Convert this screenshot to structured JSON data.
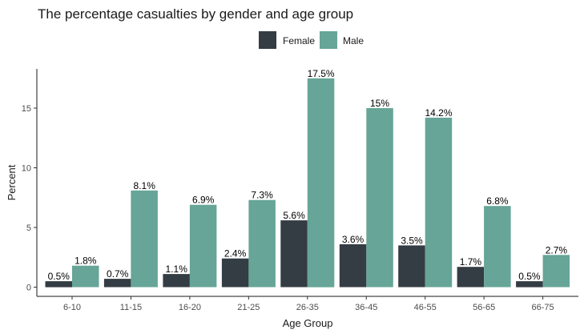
{
  "chart_data": {
    "type": "bar",
    "title": "The percentage casualties by gender and age group",
    "xlabel": "Age Group",
    "ylabel": "Percent",
    "ylim": [
      0,
      18
    ],
    "yticks": [
      0,
      5,
      10,
      15
    ],
    "grid": false,
    "legend_position": "top",
    "categories": [
      "6-10",
      "11-15",
      "16-20",
      "21-25",
      "26-35",
      "36-45",
      "46-55",
      "56-65",
      "66-75"
    ],
    "series": [
      {
        "name": "Female",
        "color": "#343c44",
        "values": [
          0.5,
          0.7,
          1.1,
          2.4,
          5.6,
          3.6,
          3.5,
          1.7,
          0.5
        ],
        "labels": [
          "0.5%",
          "0.7%",
          "1.1%",
          "2.4%",
          "5.6%",
          "3.6%",
          "3.5%",
          "1.7%",
          "0.5%"
        ]
      },
      {
        "name": "Male",
        "color": "#66a597",
        "values": [
          1.8,
          8.1,
          6.9,
          7.3,
          17.5,
          15,
          14.2,
          6.8,
          2.7
        ],
        "labels": [
          "1.8%",
          "8.1%",
          "6.9%",
          "7.3%",
          "17.5%",
          "15%",
          "14.2%",
          "6.8%",
          "2.7%"
        ]
      }
    ]
  }
}
